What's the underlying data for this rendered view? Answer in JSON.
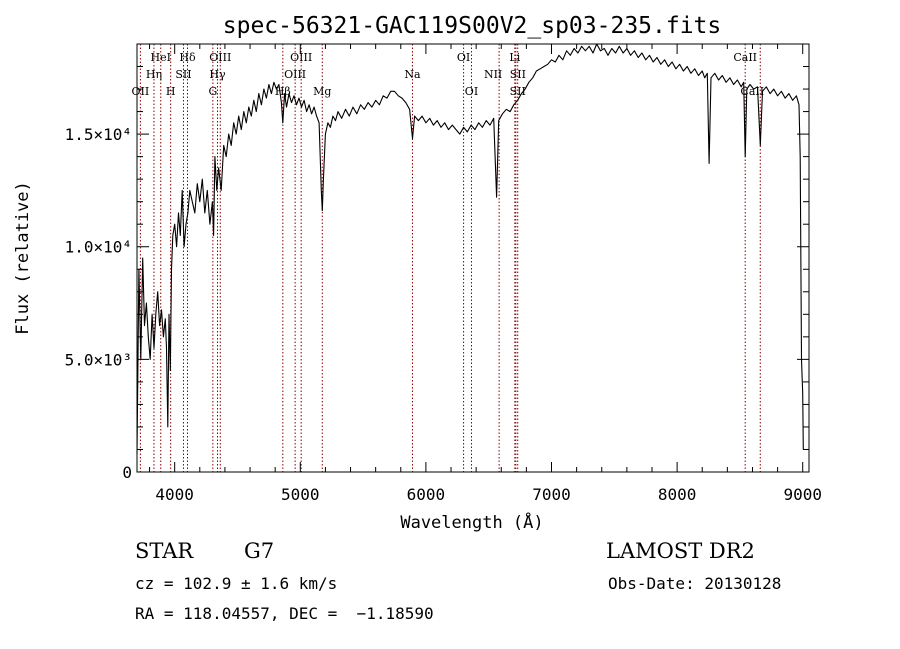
{
  "chart_data": {
    "type": "line",
    "title": "spec-56321-GAC119S00V2_sp03-235.fits",
    "xlabel": "Wavelength (Å)",
    "ylabel": "Flux (relative)",
    "xlim": [
      3700,
      9050
    ],
    "ylim": [
      0,
      19000
    ],
    "x_ticks": [
      {
        "value": 4000,
        "label": "4000"
      },
      {
        "value": 5000,
        "label": "5000"
      },
      {
        "value": 6000,
        "label": "6000"
      },
      {
        "value": 7000,
        "label": "7000"
      },
      {
        "value": 8000,
        "label": "8000"
      },
      {
        "value": 9000,
        "label": "9000"
      }
    ],
    "y_ticks": [
      {
        "value": 0,
        "label": "0"
      },
      {
        "value": 5000,
        "label": "5.0×10³"
      },
      {
        "value": 10000,
        "label": "1.0×10⁴"
      },
      {
        "value": 15000,
        "label": "1.5×10⁴"
      }
    ],
    "grid": false,
    "line_color": "#000000",
    "marker_color": "#8b0000",
    "spectrum": [
      [
        3700,
        800
      ],
      [
        3715,
        9000
      ],
      [
        3730,
        5000
      ],
      [
        3745,
        9500
      ],
      [
        3760,
        6500
      ],
      [
        3775,
        7500
      ],
      [
        3790,
        6000
      ],
      [
        3805,
        5000
      ],
      [
        3820,
        7000
      ],
      [
        3835,
        5500
      ],
      [
        3850,
        7000
      ],
      [
        3865,
        8000
      ],
      [
        3880,
        6500
      ],
      [
        3895,
        7200
      ],
      [
        3910,
        6000
      ],
      [
        3925,
        6800
      ],
      [
        3935,
        5500
      ],
      [
        3945,
        2000
      ],
      [
        3955,
        7000
      ],
      [
        3965,
        4500
      ],
      [
        3975,
        9000
      ],
      [
        3985,
        10500
      ],
      [
        4000,
        11000
      ],
      [
        4015,
        10000
      ],
      [
        4030,
        11500
      ],
      [
        4045,
        10500
      ],
      [
        4060,
        12500
      ],
      [
        4075,
        10000
      ],
      [
        4090,
        11000
      ],
      [
        4105,
        11500
      ],
      [
        4120,
        12500
      ],
      [
        4140,
        12000
      ],
      [
        4160,
        11500
      ],
      [
        4180,
        12800
      ],
      [
        4200,
        12000
      ],
      [
        4220,
        13000
      ],
      [
        4240,
        11500
      ],
      [
        4260,
        12500
      ],
      [
        4280,
        11000
      ],
      [
        4300,
        12000
      ],
      [
        4310,
        10500
      ],
      [
        4320,
        14000
      ],
      [
        4335,
        12500
      ],
      [
        4350,
        13500
      ],
      [
        4370,
        12500
      ],
      [
        4390,
        14500
      ],
      [
        4410,
        14000
      ],
      [
        4430,
        15000
      ],
      [
        4450,
        14500
      ],
      [
        4470,
        15500
      ],
      [
        4490,
        15000
      ],
      [
        4510,
        15800
      ],
      [
        4530,
        15200
      ],
      [
        4550,
        16000
      ],
      [
        4570,
        15500
      ],
      [
        4590,
        16200
      ],
      [
        4610,
        15800
      ],
      [
        4630,
        16500
      ],
      [
        4650,
        16000
      ],
      [
        4670,
        16800
      ],
      [
        4690,
        16300
      ],
      [
        4710,
        17000
      ],
      [
        4730,
        16600
      ],
      [
        4750,
        17200
      ],
      [
        4770,
        16800
      ],
      [
        4790,
        17300
      ],
      [
        4810,
        17000
      ],
      [
        4830,
        17200
      ],
      [
        4850,
        16400
      ],
      [
        4861,
        15500
      ],
      [
        4875,
        16800
      ],
      [
        4890,
        16200
      ],
      [
        4910,
        16800
      ],
      [
        4930,
        16400
      ],
      [
        4950,
        16700
      ],
      [
        4970,
        16300
      ],
      [
        4990,
        16600
      ],
      [
        5010,
        16200
      ],
      [
        5030,
        16500
      ],
      [
        5050,
        16000
      ],
      [
        5070,
        16300
      ],
      [
        5090,
        15900
      ],
      [
        5110,
        16200
      ],
      [
        5130,
        15800
      ],
      [
        5150,
        15500
      ],
      [
        5167,
        12500
      ],
      [
        5175,
        11600
      ],
      [
        5184,
        13000
      ],
      [
        5200,
        15000
      ],
      [
        5220,
        15500
      ],
      [
        5240,
        15300
      ],
      [
        5260,
        15800
      ],
      [
        5280,
        15600
      ],
      [
        5300,
        16000
      ],
      [
        5330,
        15700
      ],
      [
        5360,
        16100
      ],
      [
        5390,
        15800
      ],
      [
        5420,
        16200
      ],
      [
        5450,
        15900
      ],
      [
        5480,
        16300
      ],
      [
        5510,
        16100
      ],
      [
        5540,
        16400
      ],
      [
        5570,
        16200
      ],
      [
        5600,
        16500
      ],
      [
        5630,
        16300
      ],
      [
        5660,
        16700
      ],
      [
        5690,
        16600
      ],
      [
        5720,
        16900
      ],
      [
        5750,
        16900
      ],
      [
        5780,
        16700
      ],
      [
        5810,
        16600
      ],
      [
        5840,
        16400
      ],
      [
        5870,
        16100
      ],
      [
        5893,
        14800
      ],
      [
        5910,
        15800
      ],
      [
        5940,
        15600
      ],
      [
        5970,
        15800
      ],
      [
        6000,
        15500
      ],
      [
        6030,
        15700
      ],
      [
        6060,
        15400
      ],
      [
        6090,
        15600
      ],
      [
        6120,
        15300
      ],
      [
        6150,
        15500
      ],
      [
        6180,
        15200
      ],
      [
        6210,
        15400
      ],
      [
        6240,
        15200
      ],
      [
        6270,
        15000
      ],
      [
        6300,
        15300
      ],
      [
        6330,
        15100
      ],
      [
        6360,
        15400
      ],
      [
        6390,
        15200
      ],
      [
        6420,
        15500
      ],
      [
        6450,
        15300
      ],
      [
        6480,
        15600
      ],
      [
        6510,
        15400
      ],
      [
        6540,
        15700
      ],
      [
        6563,
        12200
      ],
      [
        6580,
        15600
      ],
      [
        6610,
        15900
      ],
      [
        6640,
        16100
      ],
      [
        6670,
        16000
      ],
      [
        6700,
        16300
      ],
      [
        6730,
        16500
      ],
      [
        6760,
        16800
      ],
      [
        6790,
        17000
      ],
      [
        6820,
        17300
      ],
      [
        6850,
        17500
      ],
      [
        6880,
        17800
      ],
      [
        6910,
        17900
      ],
      [
        6940,
        18000
      ],
      [
        6970,
        18100
      ],
      [
        7000,
        18300
      ],
      [
        7030,
        18200
      ],
      [
        7060,
        18500
      ],
      [
        7090,
        18300
      ],
      [
        7120,
        18700
      ],
      [
        7150,
        18500
      ],
      [
        7180,
        18800
      ],
      [
        7210,
        18600
      ],
      [
        7240,
        18900
      ],
      [
        7270,
        18700
      ],
      [
        7300,
        18900
      ],
      [
        7330,
        18600
      ],
      [
        7360,
        19000
      ],
      [
        7390,
        18700
      ],
      [
        7420,
        18800
      ],
      [
        7450,
        18500
      ],
      [
        7480,
        18800
      ],
      [
        7510,
        18600
      ],
      [
        7540,
        18900
      ],
      [
        7570,
        18600
      ],
      [
        7600,
        18800
      ],
      [
        7630,
        18500
      ],
      [
        7660,
        18700
      ],
      [
        7690,
        18400
      ],
      [
        7720,
        18600
      ],
      [
        7750,
        18300
      ],
      [
        7780,
        18500
      ],
      [
        7810,
        18200
      ],
      [
        7840,
        18400
      ],
      [
        7870,
        18100
      ],
      [
        7900,
        18300
      ],
      [
        7930,
        18000
      ],
      [
        7960,
        18200
      ],
      [
        7990,
        17900
      ],
      [
        8020,
        18100
      ],
      [
        8050,
        17800
      ],
      [
        8080,
        18000
      ],
      [
        8110,
        17700
      ],
      [
        8140,
        17900
      ],
      [
        8170,
        17600
      ],
      [
        8200,
        17800
      ],
      [
        8220,
        17500
      ],
      [
        8240,
        17700
      ],
      [
        8255,
        13700
      ],
      [
        8270,
        17500
      ],
      [
        8300,
        17700
      ],
      [
        8330,
        17400
      ],
      [
        8360,
        17600
      ],
      [
        8390,
        17300
      ],
      [
        8420,
        17500
      ],
      [
        8450,
        17200
      ],
      [
        8480,
        17400
      ],
      [
        8510,
        17100
      ],
      [
        8530,
        17300
      ],
      [
        8542,
        14000
      ],
      [
        8555,
        17000
      ],
      [
        8580,
        17200
      ],
      [
        8610,
        17000
      ],
      [
        8640,
        17100
      ],
      [
        8662,
        14500
      ],
      [
        8680,
        16900
      ],
      [
        8710,
        17100
      ],
      [
        8740,
        16800
      ],
      [
        8770,
        17000
      ],
      [
        8800,
        16700
      ],
      [
        8830,
        16900
      ],
      [
        8860,
        16600
      ],
      [
        8890,
        16800
      ],
      [
        8920,
        16500
      ],
      [
        8950,
        16700
      ],
      [
        8970,
        16300
      ],
      [
        8980,
        14000
      ],
      [
        8990,
        5000
      ],
      [
        9000,
        3500
      ],
      [
        9005,
        1000
      ]
    ],
    "lines": [
      {
        "name": "OII",
        "x": 3727,
        "row": 3,
        "offset": 0
      },
      {
        "name": "Hη",
        "x": 3835,
        "row": 2,
        "offset": 0
      },
      {
        "name": "HeI",
        "x": 3889,
        "row": 1,
        "offset": 0
      },
      {
        "name": "H",
        "x": 3968,
        "row": 3,
        "offset": 0
      },
      {
        "name": "SII",
        "x": 4070,
        "row": 2,
        "offset": 0
      },
      {
        "name": "Hδ",
        "x": 4102,
        "row": 1,
        "offset": 0
      },
      {
        "name": "G",
        "x": 4304,
        "row": 3,
        "offset": 0
      },
      {
        "name": "Hγ",
        "x": 4341,
        "row": 2,
        "offset": 0
      },
      {
        "name": "OIII",
        "x": 4363,
        "row": 1,
        "offset": 0
      },
      {
        "name": "Hβ",
        "x": 4861,
        "row": 3,
        "offset": 0
      },
      {
        "name": "OIII",
        "x": 4959,
        "row": 2,
        "offset": 0
      },
      {
        "name": "OIII",
        "x": 5007,
        "row": 1,
        "offset": 0
      },
      {
        "name": "Mg",
        "x": 5175,
        "row": 3,
        "offset": 0
      },
      {
        "name": "Na",
        "x": 5893,
        "row": 2,
        "offset": 0
      },
      {
        "name": "OI",
        "x": 6300,
        "row": 1,
        "offset": 0
      },
      {
        "name": "OI",
        "x": 6363,
        "row": 3,
        "offset": 0
      },
      {
        "name": "NII",
        "x": 6583,
        "row": 2,
        "offset": -6
      },
      {
        "name": "Li",
        "x": 6708,
        "row": 1,
        "offset": 0
      },
      {
        "name": "SII",
        "x": 6716,
        "row": 2,
        "offset": 2
      },
      {
        "name": "SII",
        "x": 6731,
        "row": 3,
        "offset": 0
      },
      {
        "name": "CaII",
        "x": 8542,
        "row": 1,
        "offset": 0
      },
      {
        "name": "CaII",
        "x": 8662,
        "row": 3,
        "offset": -8
      }
    ]
  },
  "info": {
    "class": "STAR",
    "subclass": "G7",
    "survey": "LAMOST DR2",
    "cz": "cz = 102.9 ± 1.6 km/s",
    "obs_date": "Obs-Date: 20130128",
    "coords": "RA = 118.04557, DEC =  −1.18590"
  }
}
